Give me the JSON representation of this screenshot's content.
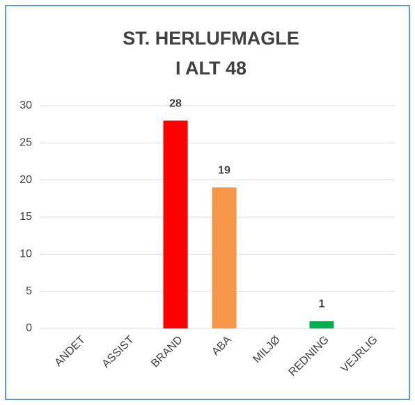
{
  "chart_data": {
    "type": "bar",
    "title": "ST. HERLUFMAGLE",
    "subtitle": "I ALT 48",
    "categories": [
      "ANDET",
      "ASSIST",
      "BRAND",
      "ABA",
      "MILJØ",
      "REDNING",
      "VEJRLIG"
    ],
    "values": [
      0,
      0,
      28,
      19,
      0,
      1,
      0
    ],
    "colors": [
      "#4472c4",
      "#4472c4",
      "#ff0000",
      "#f79646",
      "#4472c4",
      "#00b050",
      "#4472c4"
    ],
    "ylim": [
      0,
      30
    ],
    "yticks": [
      0,
      5,
      10,
      15,
      20,
      25,
      30
    ],
    "grid": true
  }
}
